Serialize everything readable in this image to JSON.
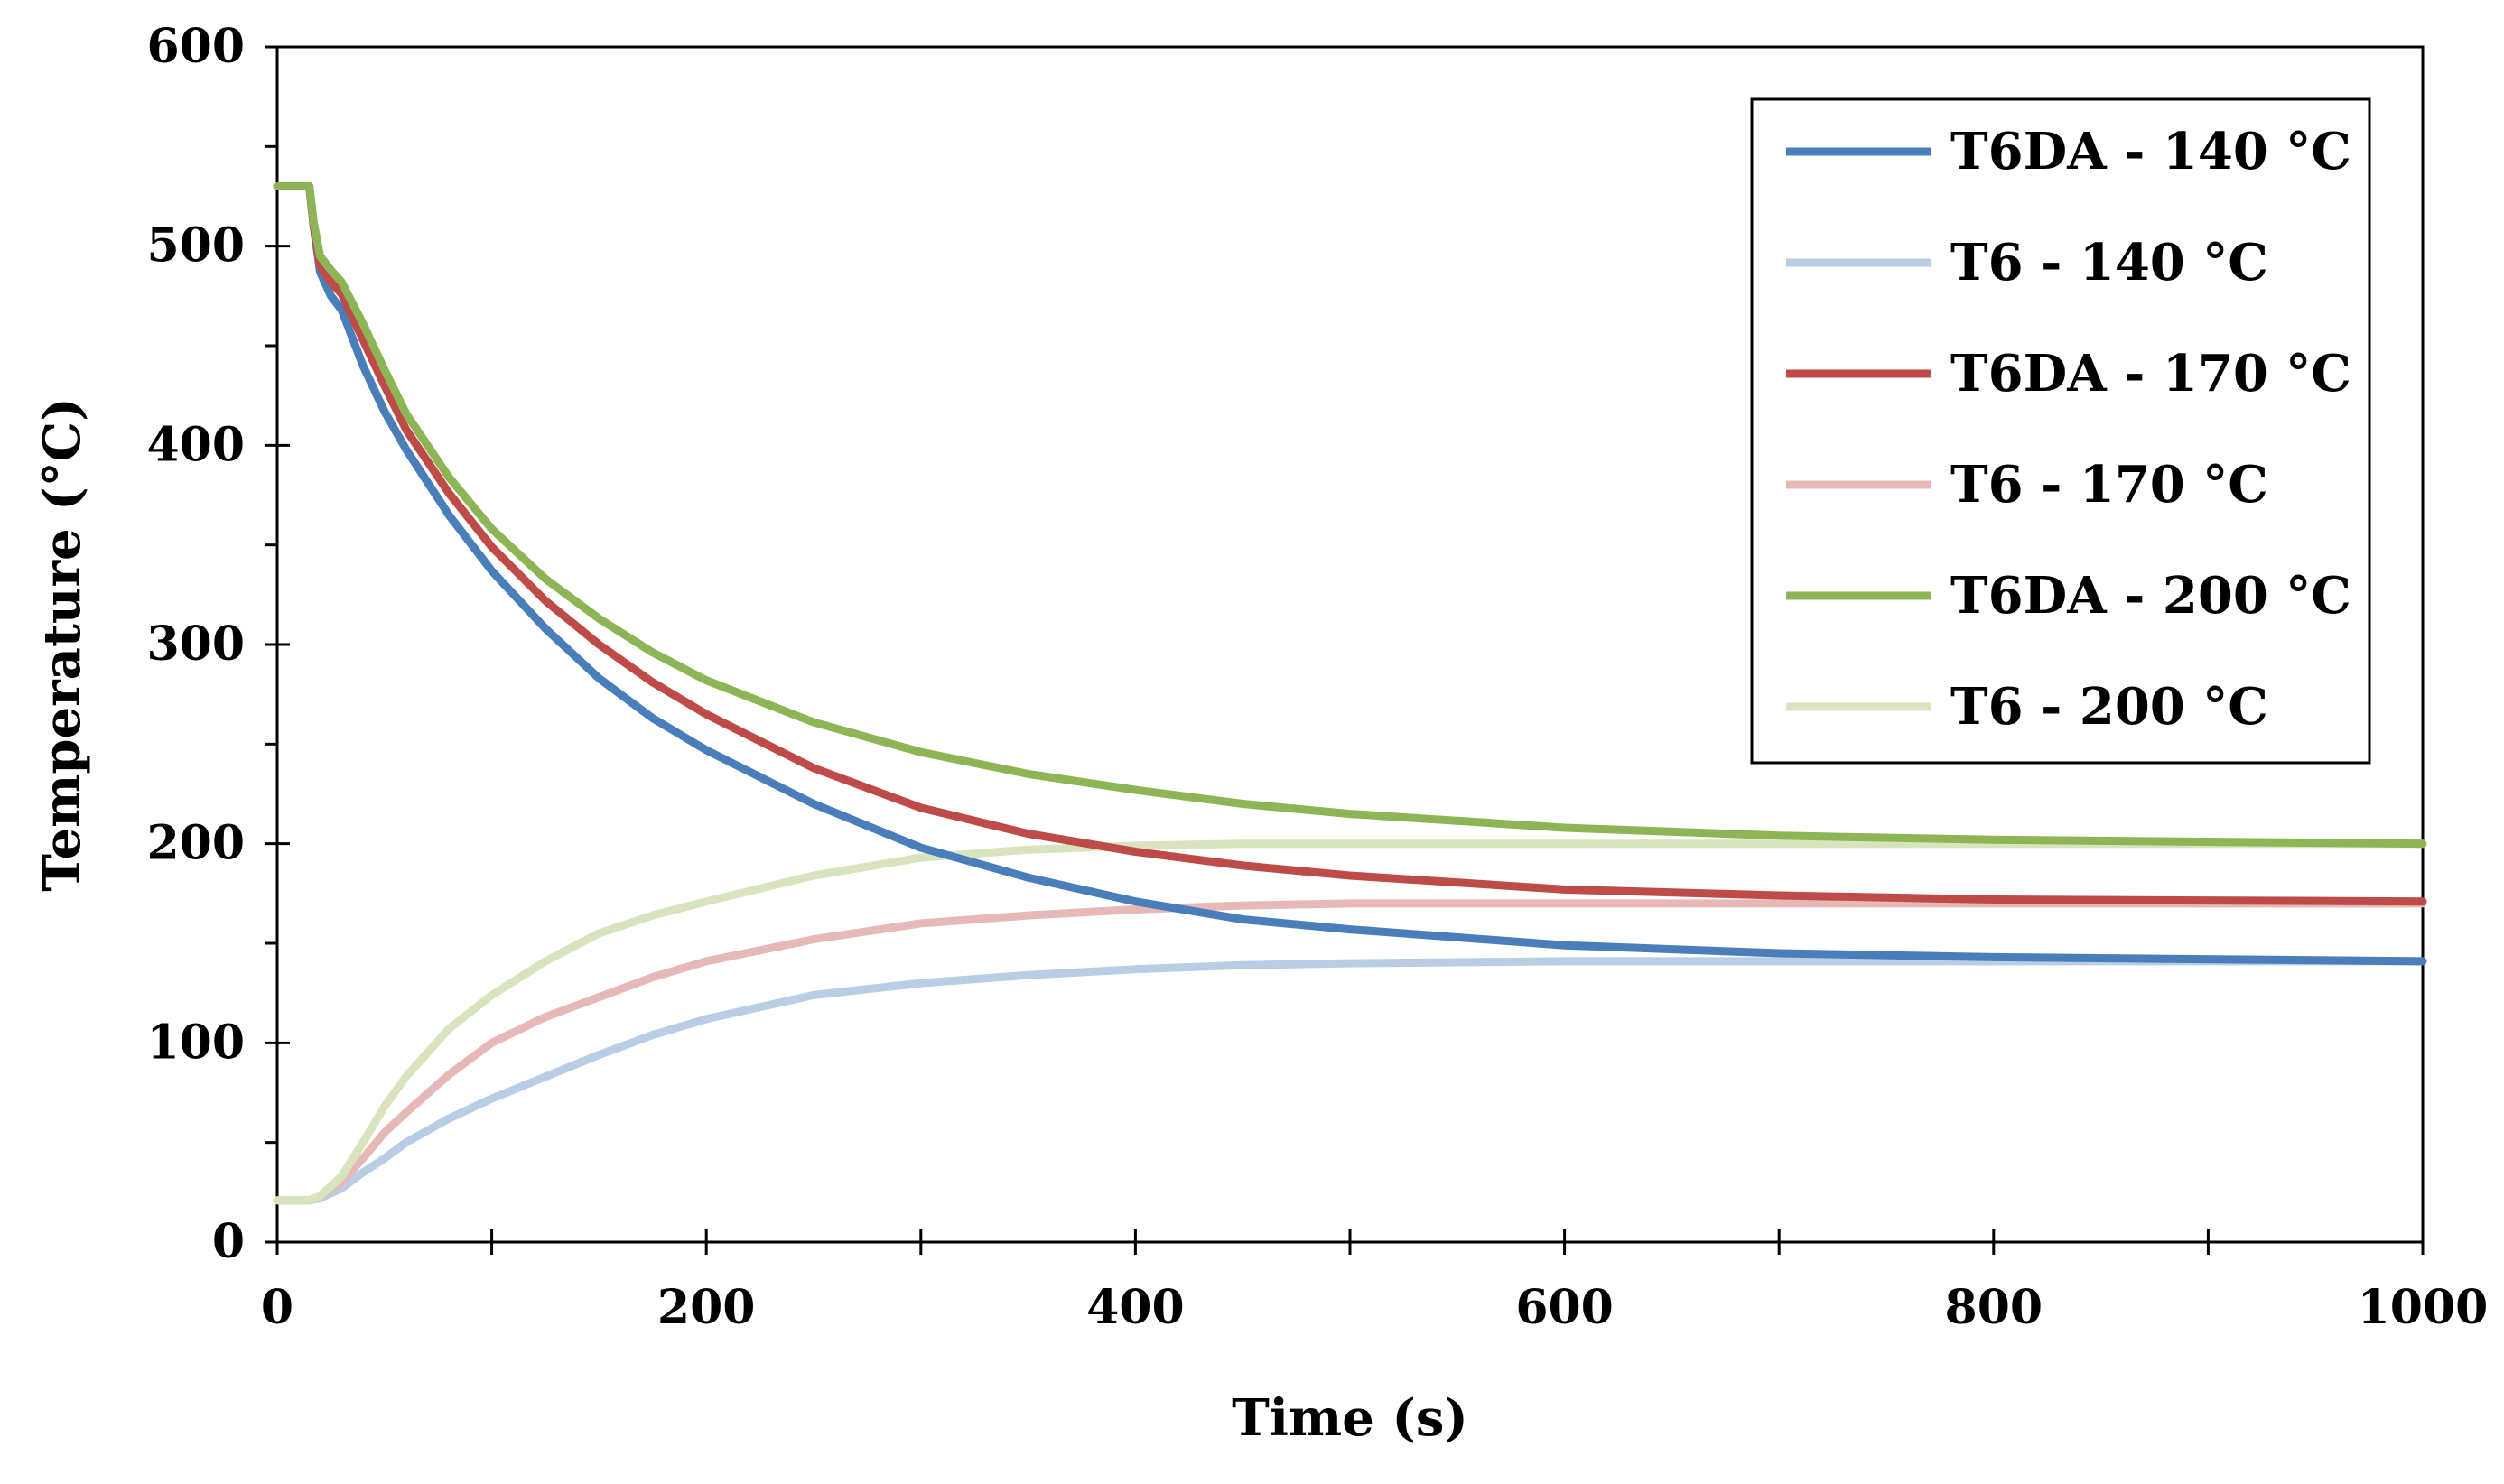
{
  "chart_data": {
    "type": "line",
    "title": "",
    "xlabel": "Time (s)",
    "ylabel": "Temperature (°C)",
    "xlim": [
      0,
      1000
    ],
    "ylim": [
      0,
      600
    ],
    "x_ticks": [
      0,
      200,
      400,
      600,
      800,
      1000
    ],
    "x_tick_labels": [
      "0",
      "200",
      "400",
      "600",
      "800",
      "1000"
    ],
    "x_minor_ticks": [
      100,
      300,
      500,
      700,
      900
    ],
    "y_ticks": [
      0,
      100,
      200,
      300,
      400,
      500,
      600
    ],
    "y_tick_labels": [
      "0",
      "100",
      "200",
      "300",
      "400",
      "500",
      "600"
    ],
    "y_minor_ticks": [
      50,
      150,
      250,
      350,
      450,
      550
    ],
    "grid": false,
    "legend_position": "top-right",
    "series": [
      {
        "name": "T6DA - 140 °C",
        "color": "#4a7ebb",
        "x": [
          0,
          15,
          17,
          20,
          25,
          30,
          40,
          50,
          60,
          80,
          100,
          125,
          150,
          175,
          200,
          250,
          300,
          350,
          400,
          450,
          500,
          600,
          700,
          800,
          1000
        ],
        "y": [
          530,
          530,
          510,
          487,
          475,
          468,
          440,
          417,
          398,
          365,
          337,
          308,
          283,
          263,
          247,
          220,
          198,
          183,
          171,
          162,
          157,
          149,
          145,
          143,
          141
        ]
      },
      {
        "name": "T6 - 140 °C",
        "color": "#b9cde5",
        "x": [
          0,
          15,
          20,
          30,
          40,
          50,
          60,
          80,
          100,
          125,
          150,
          175,
          200,
          250,
          300,
          350,
          400,
          450,
          500,
          600,
          700,
          800,
          1000
        ],
        "y": [
          21,
          21,
          22,
          27,
          35,
          42,
          50,
          62,
          72,
          83,
          94,
          104,
          112,
          124,
          130,
          134,
          137,
          139,
          140,
          141,
          141,
          141,
          141
        ]
      },
      {
        "name": "T6DA - 170 °C",
        "color": "#be4b48",
        "x": [
          0,
          15,
          17,
          20,
          25,
          30,
          40,
          50,
          60,
          80,
          100,
          125,
          150,
          175,
          200,
          250,
          300,
          350,
          400,
          450,
          500,
          600,
          700,
          800,
          1000
        ],
        "y": [
          530,
          530,
          510,
          490,
          482,
          476,
          453,
          430,
          408,
          376,
          349,
          322,
          300,
          281,
          265,
          238,
          218,
          205,
          196,
          189,
          184,
          177,
          174,
          172,
          171
        ]
      },
      {
        "name": "T6 - 170 °C",
        "color": "#e6b9b8",
        "x": [
          0,
          15,
          20,
          30,
          40,
          50,
          60,
          80,
          100,
          125,
          150,
          175,
          200,
          250,
          300,
          350,
          400,
          450,
          500,
          600,
          700,
          800,
          1000
        ],
        "y": [
          21,
          21,
          23,
          30,
          42,
          55,
          65,
          84,
          100,
          113,
          123,
          133,
          141,
          152,
          160,
          164,
          167,
          169,
          170,
          170,
          170,
          170,
          170
        ]
      },
      {
        "name": "T6DA - 200 °C",
        "color": "#8db556",
        "x": [
          0,
          15,
          17,
          20,
          25,
          30,
          40,
          50,
          60,
          80,
          100,
          125,
          150,
          175,
          200,
          250,
          300,
          350,
          400,
          450,
          500,
          600,
          700,
          800,
          1000
        ],
        "y": [
          530,
          530,
          512,
          495,
          488,
          482,
          461,
          438,
          416,
          384,
          358,
          333,
          313,
          296,
          282,
          261,
          246,
          235,
          227,
          220,
          215,
          208,
          204,
          202,
          200
        ]
      },
      {
        "name": "T6 - 200 °C",
        "color": "#d7e4bd",
        "x": [
          0,
          15,
          20,
          30,
          40,
          50,
          60,
          80,
          100,
          125,
          150,
          175,
          200,
          250,
          300,
          350,
          400,
          450,
          500,
          600,
          700,
          800,
          1000
        ],
        "y": [
          21,
          21,
          23,
          33,
          50,
          68,
          83,
          107,
          124,
          141,
          155,
          164,
          171,
          184,
          193,
          197,
          199,
          200,
          200,
          200,
          200,
          200,
          200
        ]
      }
    ]
  }
}
